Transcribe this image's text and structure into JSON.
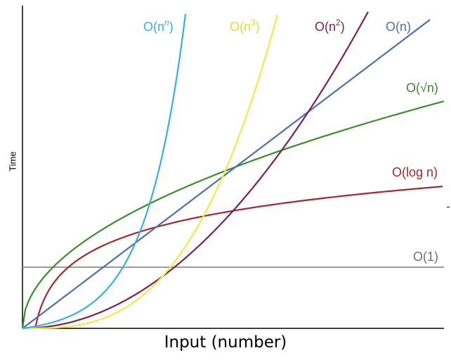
{
  "chart_data": {
    "type": "line",
    "title": "",
    "xlabel": "Input (number)",
    "ylabel": "Time",
    "grid": false,
    "legend": "inline labels at line ends",
    "series": [
      {
        "name": "O(1)",
        "color": "#8c8c8c",
        "kind": "constant"
      },
      {
        "name": "O(log n)",
        "color": "#a6262e",
        "kind": "log"
      },
      {
        "name": "O(√n)",
        "color": "#3c8c2e",
        "kind": "sqrt"
      },
      {
        "name": "O(n)",
        "color": "#4a6fb0",
        "kind": "linear"
      },
      {
        "name": "O(n2)",
        "color": "#7b1f57",
        "kind": "quadratic"
      },
      {
        "name": "O(n3)",
        "color": "#f2e84a",
        "kind": "cubic"
      },
      {
        "name": "O(nn)",
        "color": "#39aee0",
        "kind": "exponential"
      }
    ],
    "labels": [
      {
        "series": "O(nn)",
        "text_base": "O(n",
        "sup": "n",
        "text_end": ")",
        "color": "#39aee0"
      },
      {
        "series": "O(n3)",
        "text_base": "O(n",
        "sup": "3",
        "text_end": ")",
        "color": "#e8dc2a"
      },
      {
        "series": "O(n2)",
        "text_base": "O(n",
        "sup": "2",
        "text_end": ")",
        "color": "#7b1f57"
      },
      {
        "series": "O(n)",
        "text_base": "O(n)",
        "sup": "",
        "text_end": "",
        "color": "#4a6fb0"
      },
      {
        "series": "O(√n)",
        "text_base": "O(√n)",
        "sup": "",
        "text_end": "",
        "color": "#3c8c2e"
      },
      {
        "series": "O(log n)",
        "text_base": "O(log n)",
        "sup": "",
        "text_end": "",
        "color": "#a6262e"
      },
      {
        "series": "O(1)",
        "text_base": "O(1)",
        "sup": "",
        "text_end": "",
        "color": "#6f6f6f"
      }
    ]
  }
}
